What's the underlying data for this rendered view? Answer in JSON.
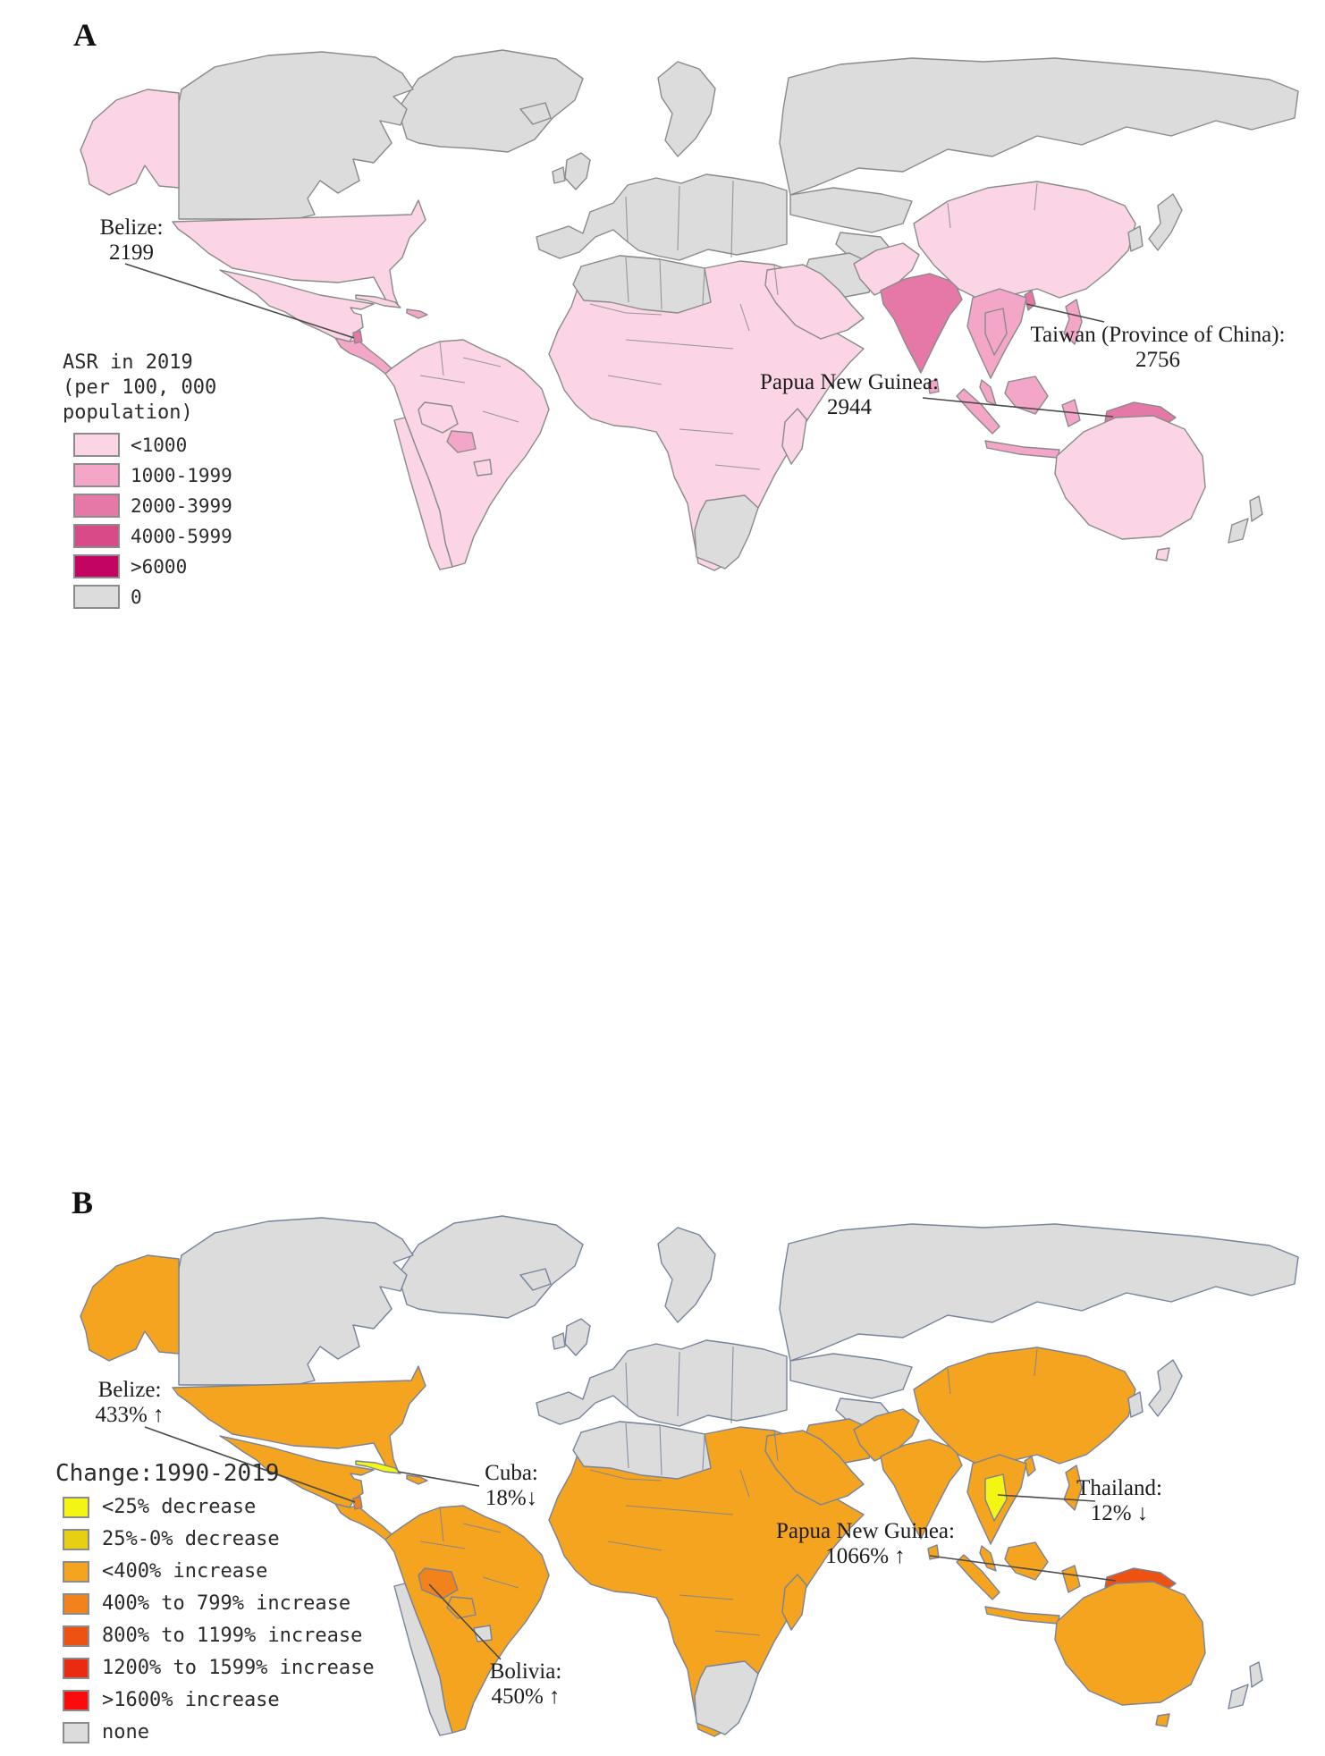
{
  "panel_a": {
    "label": "A",
    "legend": {
      "title_line1": "ASR in 2019",
      "title_line2": "(per 100, 000 population)",
      "items": [
        {
          "label": "<1000",
          "color": "#fbd5e5"
        },
        {
          "label": "1000-1999",
          "color": "#f4a6c9"
        },
        {
          "label": "2000-3999",
          "color": "#e678a7"
        },
        {
          "label": "4000-5999",
          "color": "#d84a88"
        },
        {
          "label": ">6000",
          "color": "#c30462"
        },
        {
          "label": "0",
          "color": "#dcdcdc"
        }
      ]
    },
    "annotations": {
      "belize": {
        "name": "Belize:",
        "value": "2199"
      },
      "taiwan": {
        "name": "Taiwan (Province of China):",
        "value": "2756"
      },
      "png": {
        "name": "Papua New Guinea:",
        "value": "2944"
      }
    },
    "map": {
      "stroke": "#8a8a8a",
      "classes": {
        "lt1000": "#fbd5e5",
        "r1000_1999": "#f4a6c9",
        "r2000_3999": "#e678a7",
        "r4000_5999": "#d84a88",
        "gt6000": "#c30462",
        "none": "#dcdcdc"
      },
      "regions": {
        "greenland": "none",
        "canada": "none",
        "alaska": "lt1000",
        "usa": "lt1000",
        "mexico": "lt1000",
        "central_america": "r1000_1999",
        "belize": "r2000_3999",
        "cuba": "lt1000",
        "hispaniola": "r1000_1999",
        "south_america": "lt1000",
        "chile": "lt1000",
        "bolivia": "lt1000",
        "paraguay": "r1000_1999",
        "uruguay": "lt1000",
        "africa": "lt1000",
        "north_africa_gray": "none",
        "southern_africa_gray": "none",
        "madagascar": "lt1000",
        "europe": "none",
        "scandinavia": "none",
        "uk": "none",
        "ireland": "none",
        "iceland": "none",
        "russia": "none",
        "kazakhstan": "none",
        "stans": "none",
        "mongolia": "none",
        "iran": "none",
        "middle_east": "lt1000",
        "pakistan_afghanistan": "lt1000",
        "india": "r2000_3999",
        "sri_lanka": "r1000_1999",
        "china": "lt1000",
        "korea": "none",
        "japan": "none",
        "taiwan": "r2000_3999",
        "se_asia": "r1000_1999",
        "thailand": "r1000_1999",
        "malay_peninsula": "r1000_1999",
        "sumatra": "r1000_1999",
        "borneo": "r1000_1999",
        "java": "r1000_1999",
        "sulawesi": "r1000_1999",
        "philippines": "r1000_1999",
        "png": "r2000_3999",
        "australia": "lt1000",
        "tasmania": "lt1000",
        "new_zealand": "none"
      }
    }
  },
  "panel_b": {
    "label": "B",
    "legend": {
      "title_line1": "Change:1990-2019",
      "items": [
        {
          "label": "<25% decrease",
          "color": "#f3f512"
        },
        {
          "label": "25%-0% decrease",
          "color": "#e7cf13"
        },
        {
          "label": "<400% increase",
          "color": "#f5a41f"
        },
        {
          "label": "400% to 799% increase",
          "color": "#f1821c"
        },
        {
          "label": "800% to 1199% increase",
          "color": "#ee5212"
        },
        {
          "label": "1200% to 1599% increase",
          "color": "#ea2b12"
        },
        {
          "label": ">1600% increase",
          "color": "#fb0b0b"
        },
        {
          "label": "none",
          "color": "#dcdcdc"
        }
      ]
    },
    "annotations": {
      "belize": {
        "name": "Belize:",
        "value": "433% ↑"
      },
      "cuba": {
        "name": "Cuba:",
        "value": "18%↓"
      },
      "bolivia": {
        "name": "Bolivia:",
        "value": "450% ↑"
      },
      "thailand": {
        "name": "Thailand:",
        "value": "12% ↓"
      },
      "png": {
        "name": "Papua New Guinea:",
        "value": "1066% ↑"
      }
    },
    "map": {
      "stroke": "#76839b",
      "classes": {
        "dec_lt25": "#f3f512",
        "dec_25_0": "#e7cf13",
        "inc_lt400": "#f5a41f",
        "inc_400_799": "#f1821c",
        "inc_800_1199": "#ee5212",
        "inc_1200_1599": "#ea2b12",
        "gt1600": "#fb0b0b",
        "none": "#dcdcdc"
      },
      "regions": {
        "greenland": "none",
        "canada": "none",
        "alaska": "inc_lt400",
        "usa": "inc_lt400",
        "mexico": "inc_lt400",
        "central_america": "inc_lt400",
        "belize": "inc_400_799",
        "cuba": "dec_lt25",
        "hispaniola": "inc_lt400",
        "south_america": "inc_lt400",
        "chile": "none",
        "bolivia": "inc_400_799",
        "paraguay": "inc_lt400",
        "uruguay": "none",
        "africa": "inc_lt400",
        "north_africa_gray": "none",
        "southern_africa_gray": "none",
        "madagascar": "inc_lt400",
        "europe": "none",
        "scandinavia": "none",
        "uk": "none",
        "ireland": "none",
        "iceland": "none",
        "russia": "none",
        "kazakhstan": "none",
        "stans": "none",
        "mongolia": "none",
        "iran": "inc_lt400",
        "middle_east": "inc_lt400",
        "pakistan_afghanistan": "inc_lt400",
        "india": "inc_lt400",
        "sri_lanka": "inc_lt400",
        "china": "inc_lt400",
        "korea": "none",
        "japan": "none",
        "taiwan": "inc_lt400",
        "se_asia": "inc_lt400",
        "thailand": "dec_lt25",
        "malay_peninsula": "inc_lt400",
        "sumatra": "inc_lt400",
        "borneo": "inc_lt400",
        "java": "inc_lt400",
        "sulawesi": "inc_lt400",
        "philippines": "inc_lt400",
        "png": "inc_800_1199",
        "australia": "inc_lt400",
        "tasmania": "inc_lt400",
        "new_zealand": "none"
      }
    }
  },
  "chart_data": [
    {
      "type": "heatmap",
      "title": "A: ASR in 2019 (per 100, 000 population)",
      "legend_entries": [
        "<1000",
        "1000-1999",
        "2000-3999",
        "4000-5999",
        ">6000",
        "0"
      ],
      "legend_colors": [
        "#fbd5e5",
        "#f4a6c9",
        "#e678a7",
        "#d84a88",
        "#c30462",
        "#dcdcdc"
      ],
      "annotated_points": [
        {
          "region": "Belize",
          "value": 2199
        },
        {
          "region": "Taiwan (Province of China)",
          "value": 2756
        },
        {
          "region": "Papua New Guinea",
          "value": 2944
        }
      ]
    },
    {
      "type": "heatmap",
      "title": "B: Change:1990-2019",
      "legend_entries": [
        "<25% decrease",
        "25%-0% decrease",
        "<400% increase",
        "400% to 799% increase",
        "800% to 1199% increase",
        "1200% to 1599% increase",
        ">1600% increase",
        "none"
      ],
      "legend_colors": [
        "#f3f512",
        "#e7cf13",
        "#f5a41f",
        "#f1821c",
        "#ee5212",
        "#ea2b12",
        "#fb0b0b",
        "#dcdcdc"
      ],
      "annotated_points": [
        {
          "region": "Belize",
          "value": "433% increase"
        },
        {
          "region": "Cuba",
          "value": "18% decrease"
        },
        {
          "region": "Bolivia",
          "value": "450% increase"
        },
        {
          "region": "Thailand",
          "value": "12% decrease"
        },
        {
          "region": "Papua New Guinea",
          "value": "1066% increase"
        }
      ]
    }
  ]
}
